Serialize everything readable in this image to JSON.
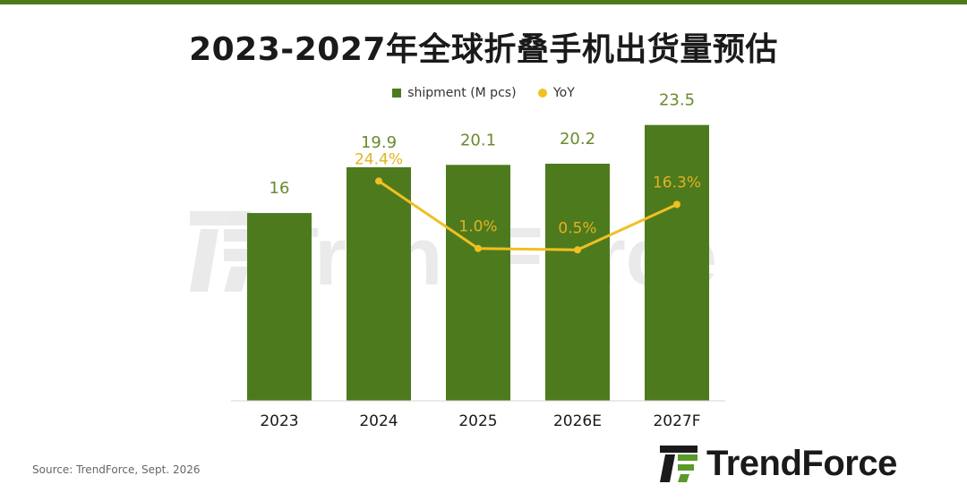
{
  "colors": {
    "accent": "#4e7a1e",
    "bar": "#4e7a1e",
    "yoy_line": "#f0c020",
    "bar_label": "#6a8a2e",
    "yoy_label": "#e2b320"
  },
  "icons": {
    "watermark": "trendforce-watermark-icon",
    "brand_logo": "trendforce-logo-icon"
  },
  "brand": {
    "name": "TrendForce"
  },
  "watermark": "TrendForce",
  "source": "Source: TrendForce, Sept. 2026",
  "chart_data": {
    "type": "bar",
    "title": "2023-2027年全球折叠手机出货量预估",
    "categories": [
      "2023",
      "2024",
      "2025",
      "2026E",
      "2027F"
    ],
    "series": [
      {
        "name": "shipment (M pcs)",
        "type": "bar",
        "values": [
          16,
          19.9,
          20.1,
          20.2,
          23.5
        ],
        "labels": [
          "16",
          "19.9",
          "20.1",
          "20.2",
          "23.5"
        ]
      },
      {
        "name": "YoY",
        "type": "line",
        "values": [
          null,
          24.4,
          1.0,
          0.5,
          16.3
        ],
        "labels": [
          "",
          "24.4%",
          "1.0%",
          "0.5%",
          "16.3%"
        ]
      }
    ],
    "ylim": [
      0,
      25
    ],
    "yoy_range": [
      -51.9,
      50
    ],
    "grid": false,
    "legend": "top-center"
  }
}
